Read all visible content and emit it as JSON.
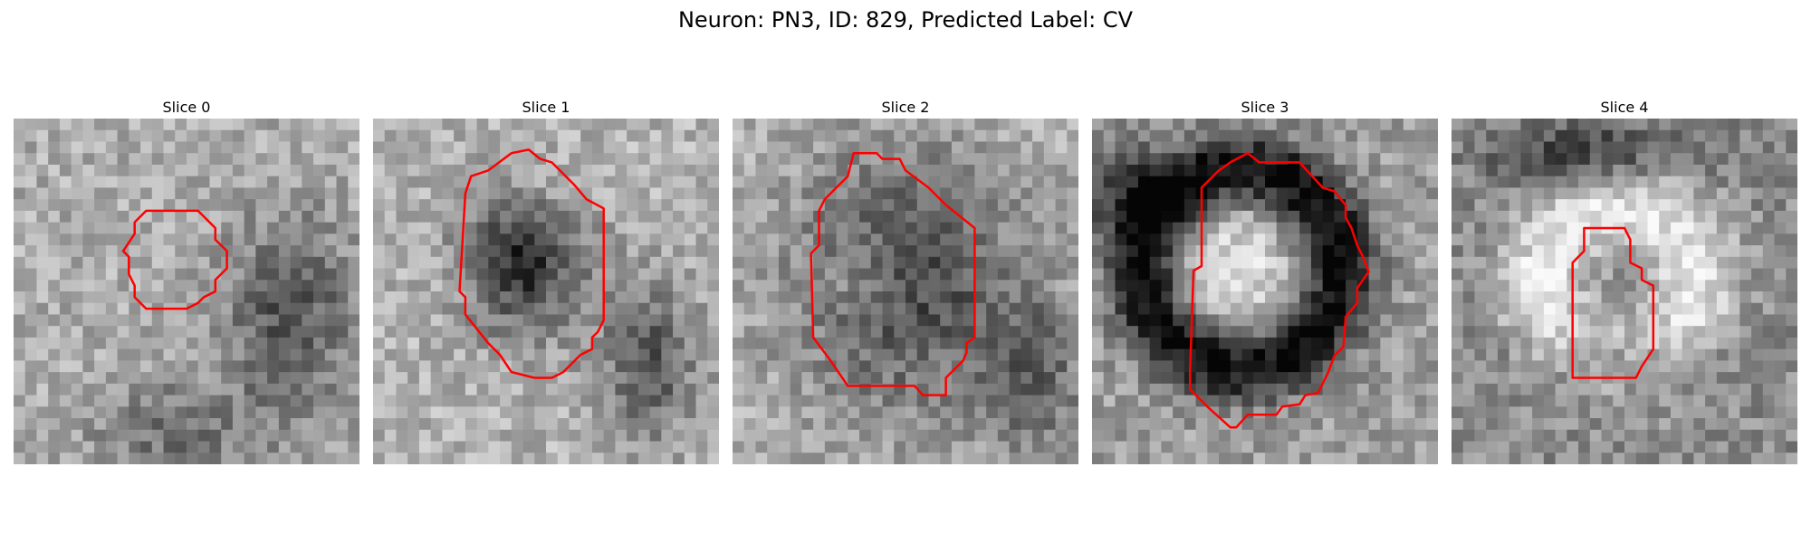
{
  "figure": {
    "title": "Neuron: PN3, ID: 829, Predicted Label: CV"
  },
  "panels": [
    {
      "label": "Slice 0",
      "pattern": "small-center-pale",
      "contour": "small-octagon"
    },
    {
      "label": "Slice 1",
      "pattern": "dark-core",
      "contour": "tall-octagon"
    },
    {
      "label": "Slice 2",
      "pattern": "mottled-dark-blob",
      "contour": "tall-rounded"
    },
    {
      "label": "Slice 3",
      "pattern": "bright-core-dark-ring",
      "contour": "tall-tilted"
    },
    {
      "label": "Slice 4",
      "pattern": "bright-halo",
      "contour": "narrow-rect"
    }
  ],
  "colors": {
    "contour": "#ff0000",
    "background": "#ffffff"
  }
}
